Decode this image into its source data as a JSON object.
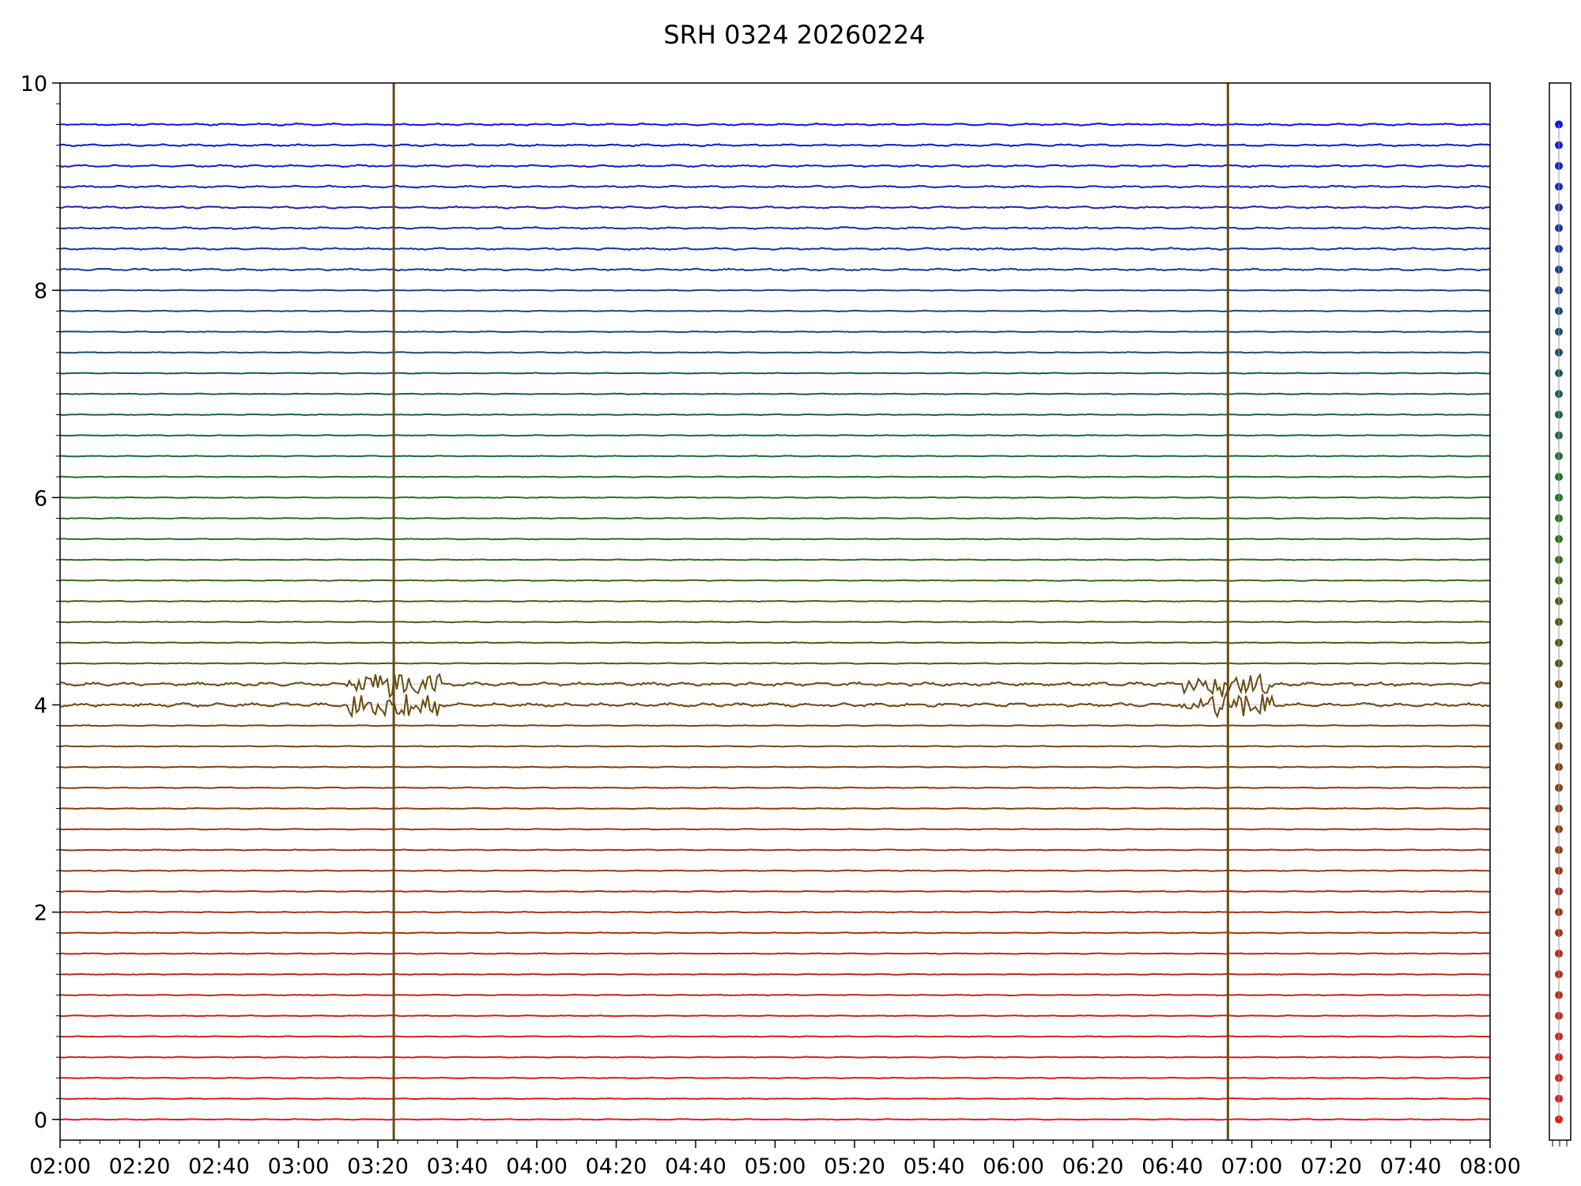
{
  "chart_data": {
    "type": "line",
    "title": "SRH 0324 20260224",
    "xlabel": "",
    "ylabel": "",
    "x_range": [
      "02:00",
      "08:00"
    ],
    "ylim": [
      -0.2,
      10.0
    ],
    "x_tick_labels": [
      "02:00",
      "02:20",
      "02:40",
      "03:00",
      "03:20",
      "03:40",
      "04:00",
      "04:20",
      "04:40",
      "05:00",
      "05:20",
      "05:40",
      "06:00",
      "06:20",
      "06:40",
      "07:00",
      "07:20",
      "07:40",
      "08:00"
    ],
    "y_tick_labels": [
      "0",
      "2",
      "4",
      "6",
      "8",
      "10"
    ],
    "y_tick_values": [
      0,
      2,
      4,
      6,
      8,
      10
    ],
    "grid": "horizontal",
    "channel_count": 49,
    "channel_spacing": 0.2,
    "channel_colors": {
      "low": "#e41a1c",
      "mid": "#6b4a10",
      "mid_high": "#1e7a1e",
      "high": "#1515e0"
    },
    "events": [
      {
        "name": "spike-1",
        "time": "03:24"
      },
      {
        "name": "spike-2",
        "time": "06:54"
      }
    ]
  },
  "legend_strip": {
    "position": "right",
    "marker_count": 49
  }
}
